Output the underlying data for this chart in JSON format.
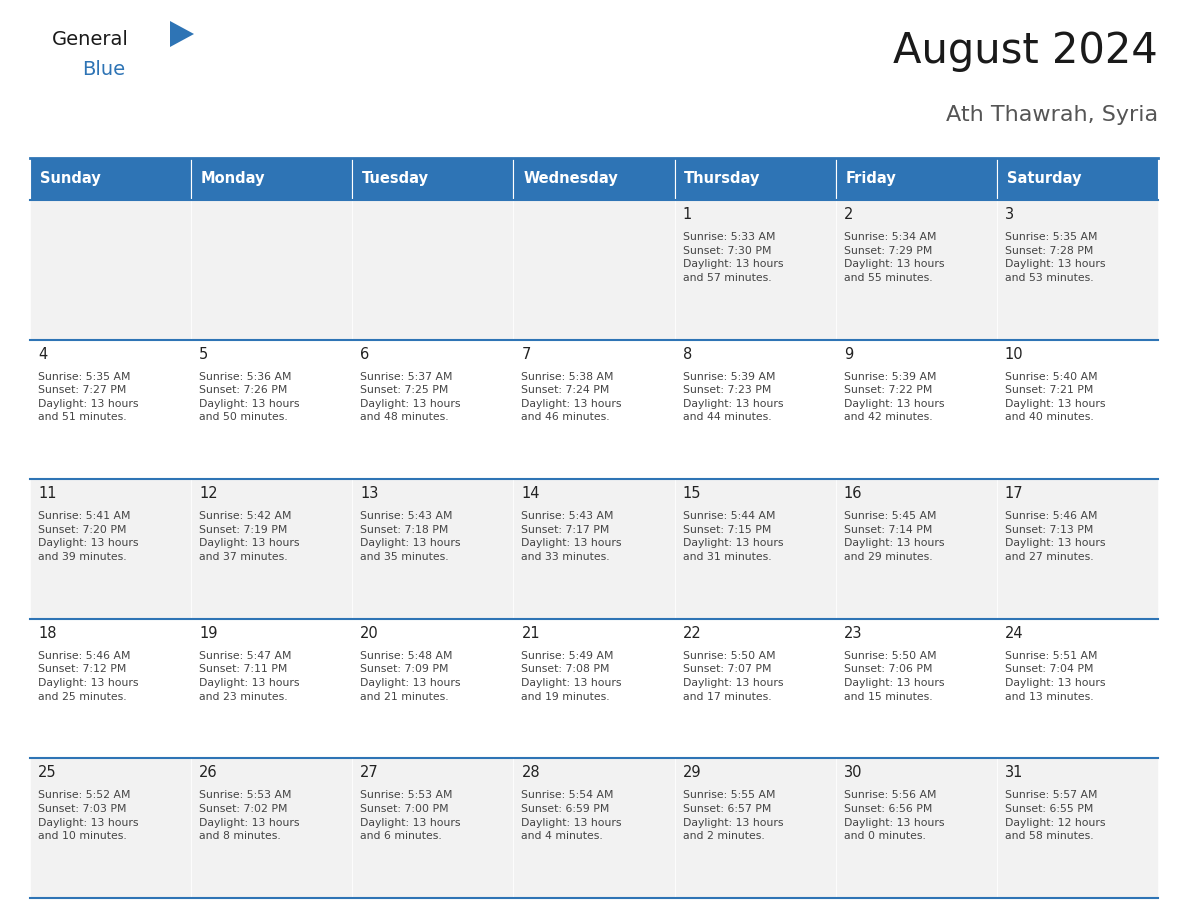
{
  "title": "August 2024",
  "subtitle": "Ath Thawrah, Syria",
  "days_of_week": [
    "Sunday",
    "Monday",
    "Tuesday",
    "Wednesday",
    "Thursday",
    "Friday",
    "Saturday"
  ],
  "header_bg": "#2E74B5",
  "header_text": "#FFFFFF",
  "row_bg_odd": "#F2F2F2",
  "row_bg_even": "#FFFFFF",
  "cell_text_color": "#444444",
  "day_num_color": "#222222",
  "border_color": "#2E74B5",
  "title_color": "#1a1a1a",
  "subtitle_color": "#555555",
  "logo_general_color": "#1a1a1a",
  "logo_blue_color": "#2E74B5",
  "fig_width": 11.88,
  "fig_height": 9.18,
  "fig_dpi": 100,
  "calendar_data": [
    [
      {
        "day": "",
        "info": ""
      },
      {
        "day": "",
        "info": ""
      },
      {
        "day": "",
        "info": ""
      },
      {
        "day": "",
        "info": ""
      },
      {
        "day": "1",
        "info": "Sunrise: 5:33 AM\nSunset: 7:30 PM\nDaylight: 13 hours\nand 57 minutes."
      },
      {
        "day": "2",
        "info": "Sunrise: 5:34 AM\nSunset: 7:29 PM\nDaylight: 13 hours\nand 55 minutes."
      },
      {
        "day": "3",
        "info": "Sunrise: 5:35 AM\nSunset: 7:28 PM\nDaylight: 13 hours\nand 53 minutes."
      }
    ],
    [
      {
        "day": "4",
        "info": "Sunrise: 5:35 AM\nSunset: 7:27 PM\nDaylight: 13 hours\nand 51 minutes."
      },
      {
        "day": "5",
        "info": "Sunrise: 5:36 AM\nSunset: 7:26 PM\nDaylight: 13 hours\nand 50 minutes."
      },
      {
        "day": "6",
        "info": "Sunrise: 5:37 AM\nSunset: 7:25 PM\nDaylight: 13 hours\nand 48 minutes."
      },
      {
        "day": "7",
        "info": "Sunrise: 5:38 AM\nSunset: 7:24 PM\nDaylight: 13 hours\nand 46 minutes."
      },
      {
        "day": "8",
        "info": "Sunrise: 5:39 AM\nSunset: 7:23 PM\nDaylight: 13 hours\nand 44 minutes."
      },
      {
        "day": "9",
        "info": "Sunrise: 5:39 AM\nSunset: 7:22 PM\nDaylight: 13 hours\nand 42 minutes."
      },
      {
        "day": "10",
        "info": "Sunrise: 5:40 AM\nSunset: 7:21 PM\nDaylight: 13 hours\nand 40 minutes."
      }
    ],
    [
      {
        "day": "11",
        "info": "Sunrise: 5:41 AM\nSunset: 7:20 PM\nDaylight: 13 hours\nand 39 minutes."
      },
      {
        "day": "12",
        "info": "Sunrise: 5:42 AM\nSunset: 7:19 PM\nDaylight: 13 hours\nand 37 minutes."
      },
      {
        "day": "13",
        "info": "Sunrise: 5:43 AM\nSunset: 7:18 PM\nDaylight: 13 hours\nand 35 minutes."
      },
      {
        "day": "14",
        "info": "Sunrise: 5:43 AM\nSunset: 7:17 PM\nDaylight: 13 hours\nand 33 minutes."
      },
      {
        "day": "15",
        "info": "Sunrise: 5:44 AM\nSunset: 7:15 PM\nDaylight: 13 hours\nand 31 minutes."
      },
      {
        "day": "16",
        "info": "Sunrise: 5:45 AM\nSunset: 7:14 PM\nDaylight: 13 hours\nand 29 minutes."
      },
      {
        "day": "17",
        "info": "Sunrise: 5:46 AM\nSunset: 7:13 PM\nDaylight: 13 hours\nand 27 minutes."
      }
    ],
    [
      {
        "day": "18",
        "info": "Sunrise: 5:46 AM\nSunset: 7:12 PM\nDaylight: 13 hours\nand 25 minutes."
      },
      {
        "day": "19",
        "info": "Sunrise: 5:47 AM\nSunset: 7:11 PM\nDaylight: 13 hours\nand 23 minutes."
      },
      {
        "day": "20",
        "info": "Sunrise: 5:48 AM\nSunset: 7:09 PM\nDaylight: 13 hours\nand 21 minutes."
      },
      {
        "day": "21",
        "info": "Sunrise: 5:49 AM\nSunset: 7:08 PM\nDaylight: 13 hours\nand 19 minutes."
      },
      {
        "day": "22",
        "info": "Sunrise: 5:50 AM\nSunset: 7:07 PM\nDaylight: 13 hours\nand 17 minutes."
      },
      {
        "day": "23",
        "info": "Sunrise: 5:50 AM\nSunset: 7:06 PM\nDaylight: 13 hours\nand 15 minutes."
      },
      {
        "day": "24",
        "info": "Sunrise: 5:51 AM\nSunset: 7:04 PM\nDaylight: 13 hours\nand 13 minutes."
      }
    ],
    [
      {
        "day": "25",
        "info": "Sunrise: 5:52 AM\nSunset: 7:03 PM\nDaylight: 13 hours\nand 10 minutes."
      },
      {
        "day": "26",
        "info": "Sunrise: 5:53 AM\nSunset: 7:02 PM\nDaylight: 13 hours\nand 8 minutes."
      },
      {
        "day": "27",
        "info": "Sunrise: 5:53 AM\nSunset: 7:00 PM\nDaylight: 13 hours\nand 6 minutes."
      },
      {
        "day": "28",
        "info": "Sunrise: 5:54 AM\nSunset: 6:59 PM\nDaylight: 13 hours\nand 4 minutes."
      },
      {
        "day": "29",
        "info": "Sunrise: 5:55 AM\nSunset: 6:57 PM\nDaylight: 13 hours\nand 2 minutes."
      },
      {
        "day": "30",
        "info": "Sunrise: 5:56 AM\nSunset: 6:56 PM\nDaylight: 13 hours\nand 0 minutes."
      },
      {
        "day": "31",
        "info": "Sunrise: 5:57 AM\nSunset: 6:55 PM\nDaylight: 12 hours\nand 58 minutes."
      }
    ]
  ]
}
